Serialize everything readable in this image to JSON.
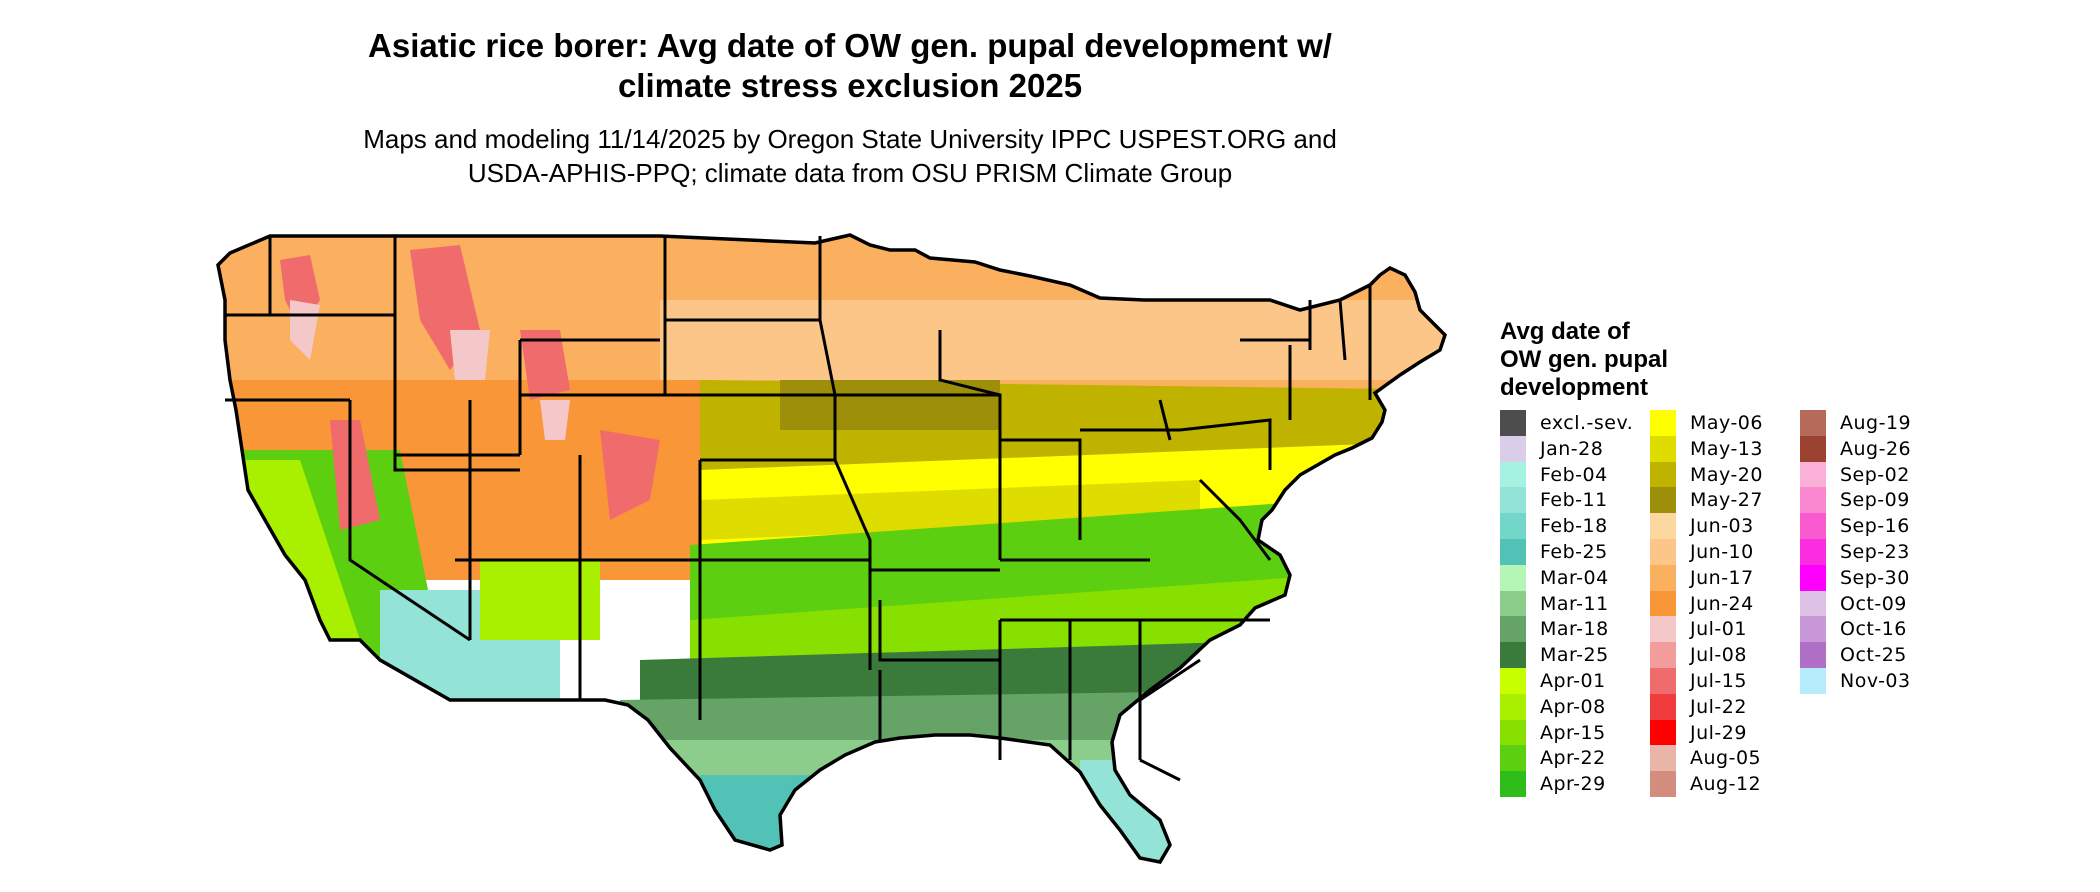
{
  "title_line1": "Asiatic rice borer: Avg date of OW gen. pupal development w/",
  "title_line2": "climate stress exclusion 2025",
  "subtitle_line1": "Maps and modeling 11/14/2025 by Oregon State University IPPC USPEST.ORG and",
  "subtitle_line2": "USDA-APHIS-PPQ; climate data from OSU PRISM Climate Group",
  "legend": {
    "title_lines": [
      "Avg date of",
      "OW gen. pupal",
      "development"
    ],
    "columns": [
      [
        {
          "label": "excl.-sev.",
          "color": "#4d4d4d"
        },
        {
          "label": "Jan-28",
          "color": "#d9cde9"
        },
        {
          "label": "Feb-04",
          "color": "#a6f2e2"
        },
        {
          "label": "Feb-11",
          "color": "#93e4d6"
        },
        {
          "label": "Feb-18",
          "color": "#72d6c8"
        },
        {
          "label": "Feb-25",
          "color": "#52c2b6"
        },
        {
          "label": "Mar-04",
          "color": "#b5f5b5"
        },
        {
          "label": "Mar-11",
          "color": "#8ccd8c"
        },
        {
          "label": "Mar-18",
          "color": "#66a366"
        },
        {
          "label": "Mar-25",
          "color": "#3a7a3a"
        },
        {
          "label": "Apr-01",
          "color": "#c8ff00"
        },
        {
          "label": "Apr-08",
          "color": "#a8f000"
        },
        {
          "label": "Apr-15",
          "color": "#88e000"
        },
        {
          "label": "Apr-22",
          "color": "#5ccf10"
        },
        {
          "label": "Apr-29",
          "color": "#2fbd1a"
        }
      ],
      [
        {
          "label": "May-06",
          "color": "#ffff00"
        },
        {
          "label": "May-13",
          "color": "#dfdc00"
        },
        {
          "label": "May-20",
          "color": "#bfb300"
        },
        {
          "label": "May-27",
          "color": "#9e8f0a"
        },
        {
          "label": "Jun-03",
          "color": "#fcd7a0"
        },
        {
          "label": "Jun-10",
          "color": "#fcc689"
        },
        {
          "label": "Jun-17",
          "color": "#fbb060"
        },
        {
          "label": "Jun-24",
          "color": "#f99638"
        },
        {
          "label": "Jul-01",
          "color": "#f4c8c8"
        },
        {
          "label": "Jul-08",
          "color": "#f29c9c"
        },
        {
          "label": "Jul-15",
          "color": "#f06b6b"
        },
        {
          "label": "Jul-22",
          "color": "#f03c3c"
        },
        {
          "label": "Jul-29",
          "color": "#ff0000"
        },
        {
          "label": "Aug-05",
          "color": "#e8b5a8"
        },
        {
          "label": "Aug-12",
          "color": "#d38d7e"
        }
      ],
      [
        {
          "label": "Aug-19",
          "color": "#b56a5a"
        },
        {
          "label": "Aug-26",
          "color": "#9b4230"
        },
        {
          "label": "Sep-02",
          "color": "#fbb0d8"
        },
        {
          "label": "Sep-09",
          "color": "#fa88d0"
        },
        {
          "label": "Sep-16",
          "color": "#fa5ad0"
        },
        {
          "label": "Sep-23",
          "color": "#fa2ee0"
        },
        {
          "label": "Sep-30",
          "color": "#ff00ff"
        },
        {
          "label": "Oct-09",
          "color": "#ddc2e6"
        },
        {
          "label": "Oct-16",
          "color": "#c898d8"
        },
        {
          "label": "Oct-25",
          "color": "#b070c8"
        },
        {
          "label": "Nov-03",
          "color": "#b5ecfb"
        }
      ]
    ]
  },
  "map_colors": {
    "outline": "#000000",
    "north": "#fbb060",
    "north_light": "#fcc689",
    "mountain_red": "#f06b6b",
    "mountain_pink": "#f4c8c8",
    "olive_dark": "#9e8f0a",
    "olive": "#bfb300",
    "yellow": "#ffff00",
    "yellow_olive": "#dfdc00",
    "green_bright": "#5ccf10",
    "green_mid": "#88e000",
    "green_dark": "#3a7a3a",
    "green_med": "#66a366",
    "green_light": "#8ccd8c",
    "teal": "#52c2b6",
    "teal_light": "#93e4d6",
    "lime": "#a8f000"
  }
}
